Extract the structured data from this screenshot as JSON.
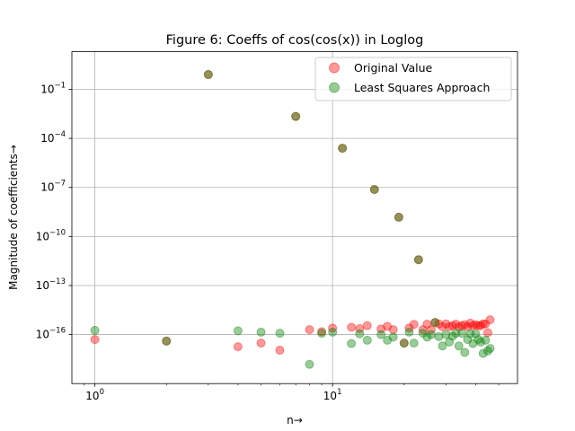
{
  "chart_data": {
    "type": "scatter",
    "title": "Figure 6: Coeffs of cos(cos(x)) in Loglog",
    "xlabel": "n→",
    "ylabel": "Magnitude of coefficients→",
    "xscale": "log",
    "yscale": "log",
    "xlim": [
      0.8,
      60
    ],
    "ylim": [
      1e-19,
      20
    ],
    "grid": true,
    "legend_position": "top-right",
    "x_ticks": [
      {
        "label_base": "10",
        "label_exp": "0",
        "value": 1
      },
      {
        "label_base": "10",
        "label_exp": "1",
        "value": 10
      }
    ],
    "y_ticks": [
      {
        "label_base": "10",
        "label_exp": "−16",
        "value": 1e-16
      },
      {
        "label_base": "10",
        "label_exp": "−13",
        "value": 1e-13
      },
      {
        "label_base": "10",
        "label_exp": "−10",
        "value": 1e-10
      },
      {
        "label_base": "10",
        "label_exp": "−7",
        "value": 1e-07
      },
      {
        "label_base": "10",
        "label_exp": "−4",
        "value": 0.0001
      },
      {
        "label_base": "10",
        "label_exp": "−1",
        "value": 0.1
      }
    ],
    "series": [
      {
        "name": "Original Value",
        "color": "#ff0000",
        "alpha": 0.4,
        "points": [
          [
            1,
            5e-17
          ],
          [
            2,
            4e-17
          ],
          [
            3,
            0.8
          ],
          [
            4,
            1.8e-17
          ],
          [
            5,
            3e-17
          ],
          [
            6,
            1.1e-17
          ],
          [
            7,
            0.0022
          ],
          [
            8,
            2e-16
          ],
          [
            9,
            1.5e-16
          ],
          [
            10,
            2.5e-16
          ],
          [
            11,
            2.5e-05
          ],
          [
            12,
            2.8e-16
          ],
          [
            13,
            2.3e-16
          ],
          [
            14,
            3.5e-16
          ],
          [
            15,
            7.5e-08
          ],
          [
            16,
            2.2e-16
          ],
          [
            17,
            3.2e-16
          ],
          [
            18,
            2e-16
          ],
          [
            19,
            1.5e-09
          ],
          [
            20,
            3e-17
          ],
          [
            21,
            2.5e-16
          ],
          [
            22,
            4.2e-16
          ],
          [
            23,
            3.8e-12
          ],
          [
            24,
            2e-16
          ],
          [
            25,
            4.3e-16
          ],
          [
            26,
            2e-16
          ],
          [
            27,
            5.5e-16
          ],
          [
            28,
            4.5e-16
          ],
          [
            29,
            3e-16
          ],
          [
            30,
            4.5e-16
          ],
          [
            31,
            3e-16
          ],
          [
            32,
            3.5e-16
          ],
          [
            33,
            4.3e-16
          ],
          [
            34,
            3e-16
          ],
          [
            35,
            3.5e-16
          ],
          [
            36,
            4e-16
          ],
          [
            37,
            3e-16
          ],
          [
            38,
            5e-16
          ],
          [
            39,
            3.5e-16
          ],
          [
            40,
            4e-16
          ],
          [
            41,
            3.5e-16
          ],
          [
            42,
            3.5e-16
          ],
          [
            43,
            4.5e-16
          ],
          [
            44,
            4.5e-16
          ],
          [
            45,
            1.3e-16
          ],
          [
            46,
            8e-16
          ]
        ]
      },
      {
        "name": "Least Squares Approach",
        "color": "#008000",
        "alpha": 0.4,
        "points": [
          [
            1,
            1.8e-16
          ],
          [
            2,
            4e-17
          ],
          [
            3,
            0.8
          ],
          [
            4,
            1.7e-16
          ],
          [
            5,
            1.4e-16
          ],
          [
            6,
            1.2e-16
          ],
          [
            7,
            0.0022
          ],
          [
            8,
            1.5e-18
          ],
          [
            9,
            1.2e-16
          ],
          [
            10,
            1.4e-16
          ],
          [
            11,
            2.5e-05
          ],
          [
            12,
            2.8e-17
          ],
          [
            13,
            1.1e-16
          ],
          [
            14,
            4.5e-17
          ],
          [
            15,
            7.5e-08
          ],
          [
            16,
            1e-16
          ],
          [
            17,
            4.5e-17
          ],
          [
            18,
            7e-17
          ],
          [
            19,
            1.5e-09
          ],
          [
            20,
            3e-17
          ],
          [
            21,
            1.4e-16
          ],
          [
            22,
            3e-17
          ],
          [
            23,
            3.8e-12
          ],
          [
            24,
            1.2e-16
          ],
          [
            25,
            7e-17
          ],
          [
            26,
            1e-16
          ],
          [
            27,
            5.5e-16
          ],
          [
            28,
            7.5e-17
          ],
          [
            29,
            2e-17
          ],
          [
            30,
            1e-16
          ],
          [
            31,
            3.5e-17
          ],
          [
            32,
            8e-17
          ],
          [
            33,
            1.2e-16
          ],
          [
            34,
            2e-17
          ],
          [
            35,
            1.2e-16
          ],
          [
            36,
            8e-18
          ],
          [
            37,
            5e-17
          ],
          [
            38,
            1.1e-16
          ],
          [
            39,
            2.8e-17
          ],
          [
            40,
            1.1e-16
          ],
          [
            41,
            5e-17
          ],
          [
            42,
            3.5e-17
          ],
          [
            43,
            7e-18
          ],
          [
            44,
            4.5e-17
          ],
          [
            45,
            1e-17
          ],
          [
            46,
            1.4e-17
          ]
        ]
      }
    ]
  }
}
